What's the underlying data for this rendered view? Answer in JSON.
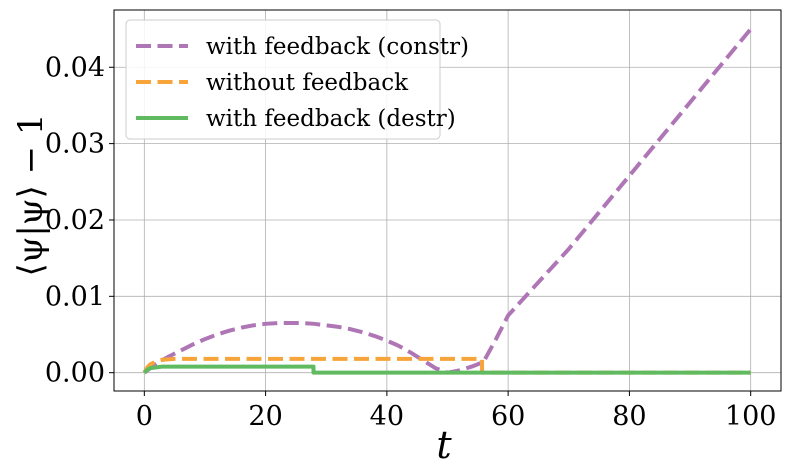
{
  "chart_data": {
    "type": "line",
    "xlabel": "t",
    "ylabel": "⟨ψ|ψ⟩ − 1",
    "xlim": [
      -5,
      105
    ],
    "ylim": [
      -0.0024,
      0.0475
    ],
    "xticks": [
      0,
      20,
      40,
      60,
      80,
      100
    ],
    "xtick_labels": [
      "0",
      "20",
      "40",
      "60",
      "80",
      "100"
    ],
    "yticks": [
      0.0,
      0.01,
      0.02,
      0.03,
      0.04
    ],
    "ytick_labels": [
      "0.00",
      "0.01",
      "0.02",
      "0.03",
      "0.04"
    ],
    "grid": true,
    "legend_position": "upper-left",
    "series": [
      {
        "name": "with feedback (constr)",
        "color": "#af76b6",
        "dash": "dashed",
        "x": [
          0,
          2,
          4,
          6,
          8,
          10,
          12,
          14,
          16,
          18,
          20,
          22,
          24,
          26,
          28,
          30,
          32,
          34,
          36,
          38,
          40,
          42,
          44,
          46,
          48,
          50,
          52,
          54,
          55,
          56,
          58,
          60,
          70,
          80,
          90,
          100
        ],
        "y": [
          0.0,
          0.0012,
          0.0021,
          0.0029,
          0.0037,
          0.0044,
          0.005,
          0.0055,
          0.0059,
          0.0062,
          0.0064,
          0.0065,
          0.0065,
          0.0065,
          0.0064,
          0.0062,
          0.006,
          0.0057,
          0.0053,
          0.0048,
          0.0042,
          0.0035,
          0.0026,
          0.0016,
          0.0006,
          0.0,
          0.0003,
          0.0008,
          0.0011,
          0.0015,
          0.0044,
          0.0075,
          0.0162,
          0.0258,
          0.0354,
          0.045
        ]
      },
      {
        "name": "without feedback",
        "color": "#f7a43b",
        "dash": "dashed",
        "x": [
          0,
          0.5,
          1,
          2,
          3,
          5,
          10,
          20,
          30,
          40,
          50,
          55.7,
          55.7,
          60,
          70,
          80,
          90,
          100
        ],
        "y": [
          0.0,
          0.0007,
          0.0011,
          0.0015,
          0.0017,
          0.0018,
          0.0018,
          0.0018,
          0.0018,
          0.0018,
          0.0018,
          0.0018,
          0.0,
          0.0,
          0.0,
          0.0,
          0.0,
          0.0
        ]
      },
      {
        "name": "with feedback (destr)",
        "color": "#60bb60",
        "dash": "solid",
        "x": [
          0,
          0.5,
          1,
          2,
          3,
          5,
          10,
          20,
          27.9,
          27.9,
          40,
          60,
          80,
          100
        ],
        "y": [
          0.0,
          0.0004,
          0.0006,
          0.0007,
          0.0008,
          0.0008,
          0.0008,
          0.0008,
          0.0008,
          0.0,
          0.0,
          0.0,
          0.0,
          0.0
        ]
      }
    ]
  }
}
